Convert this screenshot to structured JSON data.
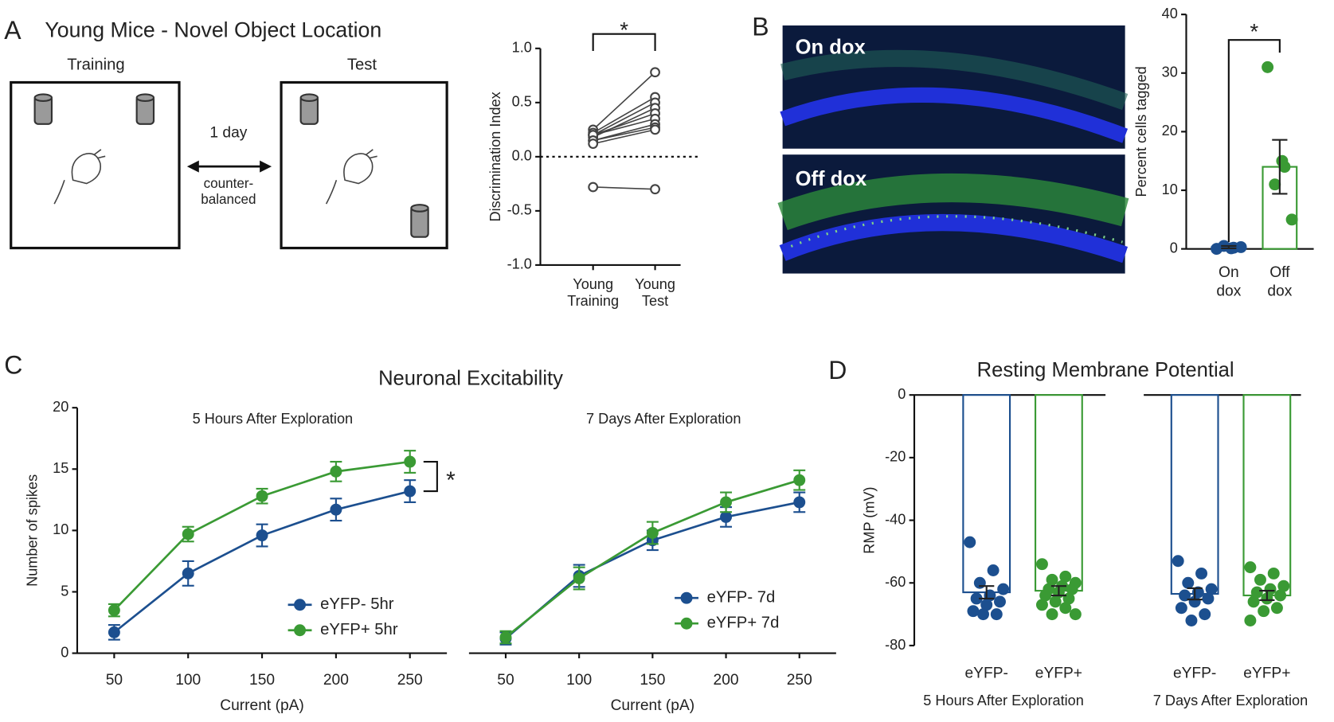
{
  "panels": [
    "A",
    "B",
    "C",
    "D"
  ],
  "diagram": {
    "title": "Young Mice - Novel Object Location",
    "training": "Training",
    "test": "Test",
    "interval": "1 day",
    "note": "counter-balanced"
  },
  "images": [
    "On dox",
    "Off dox"
  ],
  "chart_data": [
    {
      "type": "paired",
      "categories": [
        "Young Training",
        "Young Test"
      ],
      "color": "#444444",
      "series": [
        {
          "values": [
            0.25,
            0.78
          ]
        },
        {
          "values": [
            0.22,
            0.55
          ]
        },
        {
          "values": [
            0.2,
            0.5
          ]
        },
        {
          "values": [
            0.18,
            0.45
          ]
        },
        {
          "values": [
            0.2,
            0.4
          ]
        },
        {
          "values": [
            0.2,
            0.35
          ]
        },
        {
          "values": [
            0.15,
            0.3
          ]
        },
        {
          "values": [
            0.15,
            0.27
          ]
        },
        {
          "values": [
            0.12,
            0.25
          ]
        },
        {
          "values": [
            -0.28,
            -0.3
          ]
        }
      ],
      "ylim": [
        -1,
        1
      ],
      "yticks": [
        {
          "value": -1,
          "label": "-1.0"
        },
        {
          "value": -0.5,
          "label": "-0.5"
        },
        {
          "value": 0,
          "label": "0.0"
        },
        {
          "value": 0.5,
          "label": "0.5"
        },
        {
          "value": 1,
          "label": "1.0"
        }
      ],
      "ylabel": "Discrimination Index",
      "annotation": "*"
    },
    {
      "type": "bar-dot",
      "categories": [
        "On dox",
        "Off dox"
      ],
      "colors": [
        "#1c4f8f",
        "#3a9a34"
      ],
      "values": [
        0.3,
        14
      ],
      "errors": [
        0.2,
        4.6
      ],
      "points": [
        [
          0,
          0.2,
          0.5,
          0.3,
          0.1
        ],
        [
          31,
          14,
          11,
          5,
          15
        ]
      ],
      "ylim": [
        0,
        40
      ],
      "yticks": [
        0,
        10,
        20,
        30,
        40
      ],
      "ylabel": "Percent cells tagged",
      "annotation": "*"
    },
    {
      "type": "line",
      "title": "Neuronal Excitability",
      "subtitle": "5 Hours After Exploration",
      "x": [
        50,
        100,
        150,
        200,
        250
      ],
      "xlim": [
        25,
        275
      ],
      "xticks": [
        50,
        100,
        150,
        200,
        250
      ],
      "xlabel": "Current (pA)",
      "ylim": [
        0,
        20
      ],
      "yticks": [
        0,
        5,
        10,
        15,
        20
      ],
      "ylabel": "Number of spikes",
      "legend": "lower right",
      "annotation": "*",
      "series": [
        {
          "name": "eYFP- 5hr",
          "color": "#1c4f8f",
          "values": [
            1.7,
            6.5,
            9.6,
            11.7,
            13.2
          ],
          "errors": [
            0.6,
            1.0,
            0.9,
            0.9,
            0.9
          ]
        },
        {
          "name": "eYFP+ 5hr",
          "color": "#3a9a34",
          "values": [
            3.5,
            9.7,
            12.8,
            14.8,
            15.6
          ],
          "errors": [
            0.5,
            0.6,
            0.6,
            0.8,
            0.9
          ]
        }
      ]
    },
    {
      "type": "line",
      "subtitle": "7 Days After Exploration",
      "x": [
        50,
        100,
        150,
        200,
        250
      ],
      "xlim": [
        25,
        275
      ],
      "xticks": [
        50,
        100,
        150,
        200,
        250
      ],
      "xlabel": "Current (pA)",
      "ylim": [
        0,
        20
      ],
      "legend": "lower right",
      "series": [
        {
          "name": "eYFP- 7d",
          "color": "#1c4f8f",
          "values": [
            1.2,
            6.3,
            9.2,
            11.1,
            12.3
          ],
          "errors": [
            0.5,
            0.9,
            0.8,
            0.8,
            0.8
          ]
        },
        {
          "name": "eYFP+ 7d",
          "color": "#3a9a34",
          "values": [
            1.3,
            6.1,
            9.8,
            12.3,
            14.1
          ],
          "errors": [
            0.5,
            0.9,
            0.9,
            0.8,
            0.8
          ]
        }
      ]
    },
    {
      "type": "bar-dot",
      "title": "Resting Membrane Potential",
      "subtitle": "5 Hours After Exploration",
      "categories": [
        "eYFP-",
        "eYFP+"
      ],
      "colors": [
        "#1c4f8f",
        "#3a9a34"
      ],
      "values": [
        -63,
        -62.5
      ],
      "errors": [
        2,
        1.5
      ],
      "points": [
        [
          -47,
          -56,
          -60,
          -62,
          -64,
          -65,
          -66,
          -67,
          -69,
          -70,
          -70
        ],
        [
          -54,
          -58,
          -59,
          -60,
          -61,
          -62,
          -62,
          -63,
          -64,
          -65,
          -66,
          -67,
          -68,
          -70,
          -70
        ]
      ],
      "ylim": [
        -80,
        0
      ],
      "yticks": [
        -80,
        -60,
        -40,
        -20,
        0
      ],
      "ylabel": "RMP (mV)"
    },
    {
      "type": "bar-dot",
      "subtitle": "7 Days After Exploration",
      "categories": [
        "eYFP-",
        "eYFP+"
      ],
      "colors": [
        "#1c4f8f",
        "#3a9a34"
      ],
      "values": [
        -63.5,
        -64
      ],
      "errors": [
        1.8,
        1.5
      ],
      "points": [
        [
          -53,
          -57,
          -60,
          -62,
          -63,
          -64,
          -65,
          -66,
          -68,
          -70,
          -72
        ],
        [
          -55,
          -57,
          -59,
          -61,
          -62,
          -63,
          -64,
          -65,
          -66,
          -68,
          -69,
          -72
        ]
      ],
      "ylim": [
        -80,
        0
      ]
    }
  ]
}
